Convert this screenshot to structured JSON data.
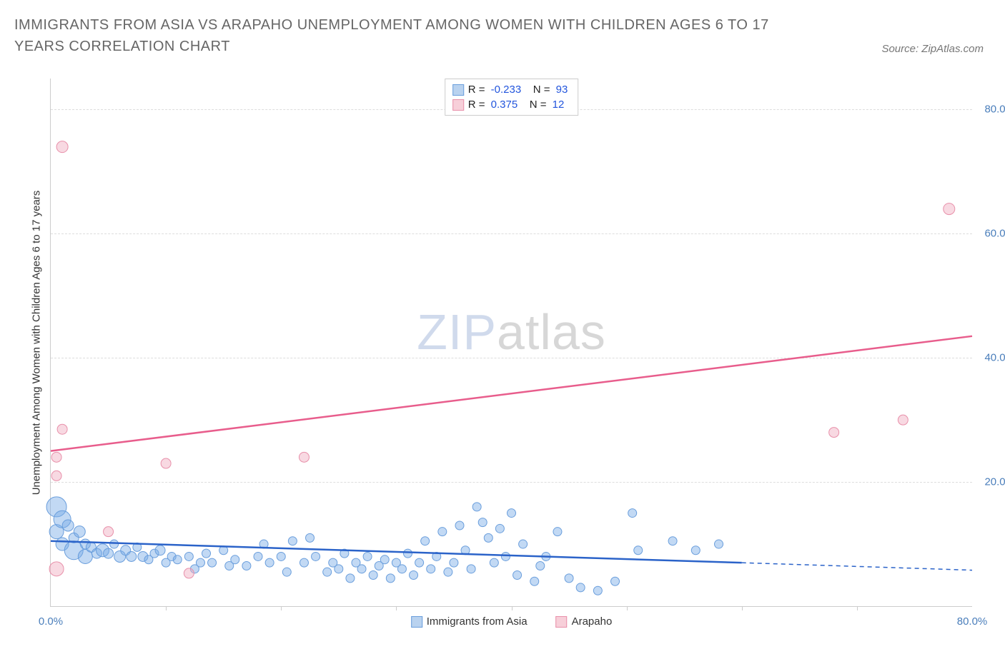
{
  "title": "IMMIGRANTS FROM ASIA VS ARAPAHO UNEMPLOYMENT AMONG WOMEN WITH CHILDREN AGES 6 TO 17 YEARS CORRELATION CHART",
  "source": "Source: ZipAtlas.com",
  "y_axis_label": "Unemployment Among Women with Children Ages 6 to 17 years",
  "watermark": {
    "part1": "ZIP",
    "part2": "atlas"
  },
  "legend_stats": {
    "series": [
      {
        "swatch_fill": "#b9d2ef",
        "swatch_border": "#6a9edc",
        "r_label": "R =",
        "r_value": "-0.233",
        "n_label": "N =",
        "n_value": "93"
      },
      {
        "swatch_fill": "#f7cfd9",
        "swatch_border": "#e890aa",
        "r_label": "R =",
        "r_value": "0.375",
        "n_label": "N =",
        "n_value": "12"
      }
    ]
  },
  "bottom_legend": {
    "s1": {
      "swatch_fill": "#b9d2ef",
      "swatch_border": "#6a9edc",
      "label": "Immigrants from Asia"
    },
    "s2": {
      "swatch_fill": "#f7cfd9",
      "swatch_border": "#e890aa",
      "label": "Arapaho"
    }
  },
  "chart": {
    "type": "scatter",
    "xlim": [
      0,
      80
    ],
    "ylim": [
      0,
      85
    ],
    "x_tick_labels": {
      "min": "0.0%",
      "max": "80.0%"
    },
    "x_tick_marks": [
      10,
      20,
      30,
      40,
      50,
      60,
      70
    ],
    "y_ticks": [
      {
        "v": 20,
        "label": "20.0%"
      },
      {
        "v": 40,
        "label": "40.0%"
      },
      {
        "v": 60,
        "label": "60.0%"
      },
      {
        "v": 80,
        "label": "80.0%"
      }
    ],
    "background_color": "#ffffff",
    "grid_color": "#dddddd",
    "series": [
      {
        "name": "Immigrants from Asia",
        "point_fill": "rgba(120,170,230,0.45)",
        "point_stroke": "#6a9edc",
        "line_color": "#2b63c9",
        "line_width": 2.5,
        "trend": {
          "x1": 0,
          "y1": 10.5,
          "x2": 60,
          "y2": 7.0,
          "dash_x2": 80,
          "dash_y2": 5.8
        },
        "points": [
          {
            "x": 0.5,
            "y": 16,
            "r": 14
          },
          {
            "x": 0.5,
            "y": 12,
            "r": 10
          },
          {
            "x": 1,
            "y": 14,
            "r": 12
          },
          {
            "x": 1,
            "y": 10,
            "r": 9
          },
          {
            "x": 1.5,
            "y": 13,
            "r": 8
          },
          {
            "x": 2,
            "y": 11,
            "r": 7
          },
          {
            "x": 2,
            "y": 9,
            "r": 13
          },
          {
            "x": 2.5,
            "y": 12,
            "r": 8
          },
          {
            "x": 3,
            "y": 10,
            "r": 7
          },
          {
            "x": 3,
            "y": 8,
            "r": 10
          },
          {
            "x": 3.5,
            "y": 9.5,
            "r": 7
          },
          {
            "x": 4,
            "y": 8.5,
            "r": 7
          },
          {
            "x": 4.5,
            "y": 9,
            "r": 9
          },
          {
            "x": 5,
            "y": 8.5,
            "r": 7
          },
          {
            "x": 5.5,
            "y": 10,
            "r": 6
          },
          {
            "x": 6,
            "y": 8,
            "r": 8
          },
          {
            "x": 6.5,
            "y": 9,
            "r": 7
          },
          {
            "x": 7,
            "y": 8,
            "r": 7
          },
          {
            "x": 7.5,
            "y": 9.5,
            "r": 6
          },
          {
            "x": 8,
            "y": 8,
            "r": 7
          },
          {
            "x": 8.5,
            "y": 7.5,
            "r": 6
          },
          {
            "x": 9,
            "y": 8.5,
            "r": 6
          },
          {
            "x": 9.5,
            "y": 9,
            "r": 7
          },
          {
            "x": 10,
            "y": 7,
            "r": 6
          },
          {
            "x": 10.5,
            "y": 8,
            "r": 6
          },
          {
            "x": 11,
            "y": 7.5,
            "r": 6
          },
          {
            "x": 12,
            "y": 8,
            "r": 6
          },
          {
            "x": 12.5,
            "y": 6,
            "r": 6
          },
          {
            "x": 13,
            "y": 7,
            "r": 6
          },
          {
            "x": 13.5,
            "y": 8.5,
            "r": 6
          },
          {
            "x": 14,
            "y": 7,
            "r": 6
          },
          {
            "x": 15,
            "y": 9,
            "r": 6
          },
          {
            "x": 15.5,
            "y": 6.5,
            "r": 6
          },
          {
            "x": 16,
            "y": 7.5,
            "r": 6
          },
          {
            "x": 17,
            "y": 6.5,
            "r": 6
          },
          {
            "x": 18,
            "y": 8,
            "r": 6
          },
          {
            "x": 18.5,
            "y": 10,
            "r": 6
          },
          {
            "x": 19,
            "y": 7,
            "r": 6
          },
          {
            "x": 20,
            "y": 8,
            "r": 6
          },
          {
            "x": 20.5,
            "y": 5.5,
            "r": 6
          },
          {
            "x": 21,
            "y": 10.5,
            "r": 6
          },
          {
            "x": 22,
            "y": 7,
            "r": 6
          },
          {
            "x": 22.5,
            "y": 11,
            "r": 6
          },
          {
            "x": 23,
            "y": 8,
            "r": 6
          },
          {
            "x": 24,
            "y": 5.5,
            "r": 6
          },
          {
            "x": 24.5,
            "y": 7,
            "r": 6
          },
          {
            "x": 25,
            "y": 6,
            "r": 6
          },
          {
            "x": 25.5,
            "y": 8.5,
            "r": 6
          },
          {
            "x": 26,
            "y": 4.5,
            "r": 6
          },
          {
            "x": 26.5,
            "y": 7,
            "r": 6
          },
          {
            "x": 27,
            "y": 6,
            "r": 6
          },
          {
            "x": 27.5,
            "y": 8,
            "r": 6
          },
          {
            "x": 28,
            "y": 5,
            "r": 6
          },
          {
            "x": 28.5,
            "y": 6.5,
            "r": 6
          },
          {
            "x": 29,
            "y": 7.5,
            "r": 6
          },
          {
            "x": 29.5,
            "y": 4.5,
            "r": 6
          },
          {
            "x": 30,
            "y": 7,
            "r": 6
          },
          {
            "x": 30.5,
            "y": 6,
            "r": 6
          },
          {
            "x": 31,
            "y": 8.5,
            "r": 6
          },
          {
            "x": 31.5,
            "y": 5,
            "r": 6
          },
          {
            "x": 32,
            "y": 7,
            "r": 6
          },
          {
            "x": 32.5,
            "y": 10.5,
            "r": 6
          },
          {
            "x": 33,
            "y": 6,
            "r": 6
          },
          {
            "x": 33.5,
            "y": 8,
            "r": 6
          },
          {
            "x": 34,
            "y": 12,
            "r": 6
          },
          {
            "x": 34.5,
            "y": 5.5,
            "r": 6
          },
          {
            "x": 35,
            "y": 7,
            "r": 6
          },
          {
            "x": 35.5,
            "y": 13,
            "r": 6
          },
          {
            "x": 36,
            "y": 9,
            "r": 6
          },
          {
            "x": 36.5,
            "y": 6,
            "r": 6
          },
          {
            "x": 37,
            "y": 16,
            "r": 6
          },
          {
            "x": 37.5,
            "y": 13.5,
            "r": 6
          },
          {
            "x": 38,
            "y": 11,
            "r": 6
          },
          {
            "x": 38.5,
            "y": 7,
            "r": 6
          },
          {
            "x": 39,
            "y": 12.5,
            "r": 6
          },
          {
            "x": 39.5,
            "y": 8,
            "r": 6
          },
          {
            "x": 40,
            "y": 15,
            "r": 6
          },
          {
            "x": 40.5,
            "y": 5,
            "r": 6
          },
          {
            "x": 41,
            "y": 10,
            "r": 6
          },
          {
            "x": 42,
            "y": 4,
            "r": 6
          },
          {
            "x": 42.5,
            "y": 6.5,
            "r": 6
          },
          {
            "x": 43,
            "y": 8,
            "r": 6
          },
          {
            "x": 44,
            "y": 12,
            "r": 6
          },
          {
            "x": 45,
            "y": 4.5,
            "r": 6
          },
          {
            "x": 46,
            "y": 3,
            "r": 6
          },
          {
            "x": 47.5,
            "y": 2.5,
            "r": 6
          },
          {
            "x": 49,
            "y": 4,
            "r": 6
          },
          {
            "x": 50.5,
            "y": 15,
            "r": 6
          },
          {
            "x": 51,
            "y": 9,
            "r": 6
          },
          {
            "x": 54,
            "y": 10.5,
            "r": 6
          },
          {
            "x": 56,
            "y": 9,
            "r": 6
          },
          {
            "x": 58,
            "y": 10,
            "r": 6
          }
        ]
      },
      {
        "name": "Arapaho",
        "point_fill": "rgba(240,170,190,0.45)",
        "point_stroke": "#e890aa",
        "line_color": "#e85d8c",
        "line_width": 2.5,
        "trend": {
          "x1": 0,
          "y1": 25,
          "x2": 80,
          "y2": 43.5
        },
        "points": [
          {
            "x": 0.5,
            "y": 6,
            "r": 10
          },
          {
            "x": 0.5,
            "y": 21,
            "r": 7
          },
          {
            "x": 0.5,
            "y": 24,
            "r": 7
          },
          {
            "x": 1,
            "y": 28.5,
            "r": 7
          },
          {
            "x": 1,
            "y": 74,
            "r": 8
          },
          {
            "x": 5,
            "y": 12,
            "r": 7
          },
          {
            "x": 10,
            "y": 23,
            "r": 7
          },
          {
            "x": 12,
            "y": 5.3,
            "r": 7
          },
          {
            "x": 22,
            "y": 24,
            "r": 7
          },
          {
            "x": 68,
            "y": 28,
            "r": 7
          },
          {
            "x": 74,
            "y": 30,
            "r": 7
          },
          {
            "x": 78,
            "y": 64,
            "r": 8
          }
        ]
      }
    ]
  }
}
